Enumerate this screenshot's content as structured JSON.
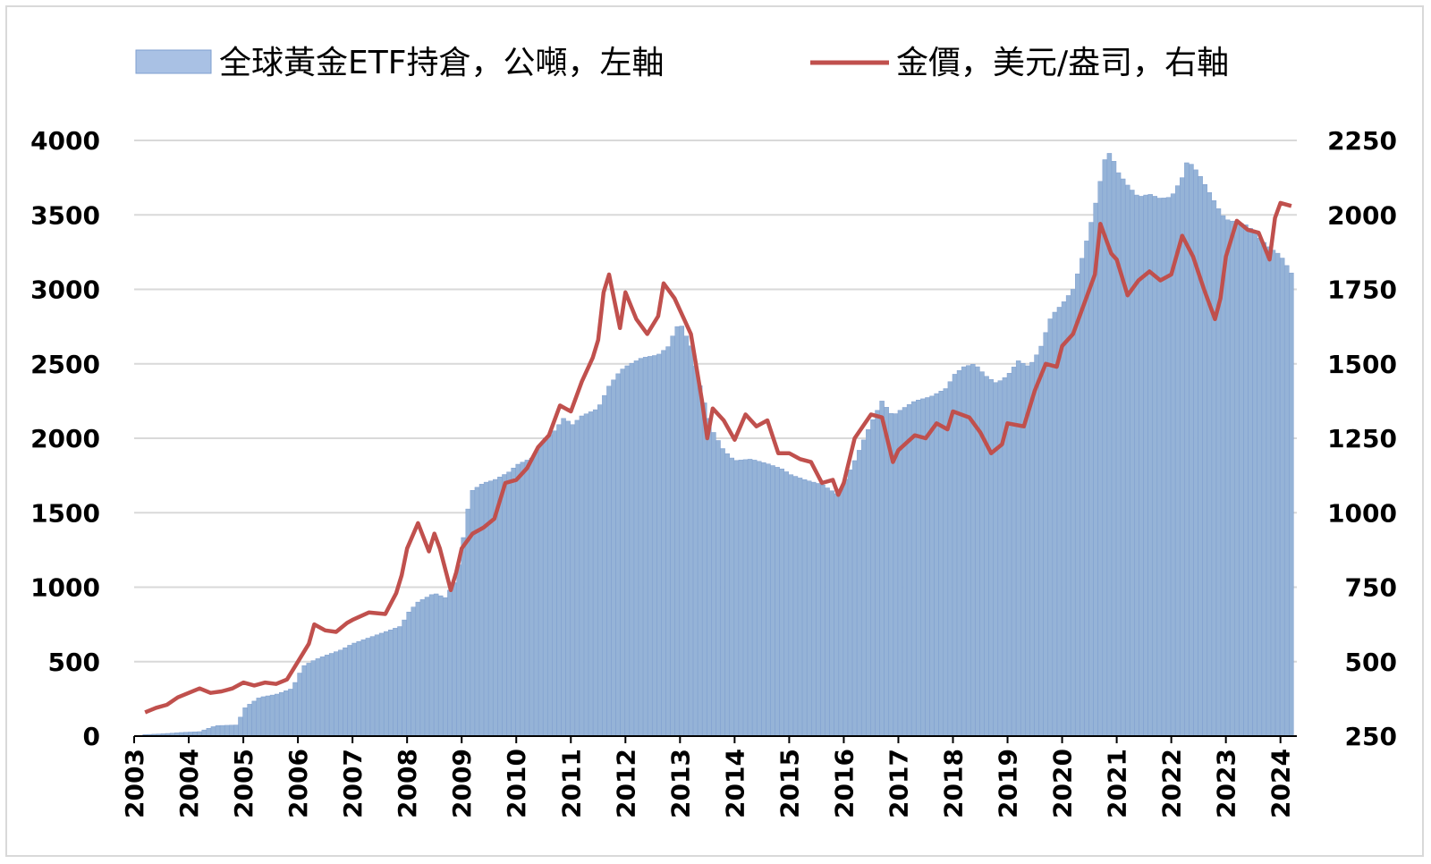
{
  "chart_data": {
    "type": "bar+line",
    "legend": {
      "bars_label": "全球黃金ETF持倉，公噸，左軸",
      "line_label": "金價，美元/盎司，右軸"
    },
    "colors": {
      "bars": "#95b3d7",
      "bars_edge": "#7f9fcf",
      "line": "#c0504d",
      "grid": "#d9d9d9"
    },
    "left_axis": {
      "min": 0,
      "max": 4000,
      "ticks": [
        0,
        500,
        1000,
        1500,
        2000,
        2500,
        3000,
        3500,
        4000
      ]
    },
    "right_axis": {
      "min": 250,
      "max": 2250,
      "ticks": [
        250,
        500,
        750,
        1000,
        1250,
        1500,
        1750,
        2000,
        2250
      ]
    },
    "x_axis": {
      "min": 2003.0,
      "max": 2024.3,
      "ticks": [
        "2003",
        "2004",
        "2005",
        "2006",
        "2007",
        "2008",
        "2009",
        "2010",
        "2011",
        "2012",
        "2013",
        "2014",
        "2015",
        "2016",
        "2017",
        "2018",
        "2019",
        "2020",
        "2021",
        "2022",
        "2023",
        "2024"
      ]
    },
    "etf_holdings_tonnes": [
      [
        2003.2,
        10
      ],
      [
        2003.5,
        15
      ],
      [
        2003.9,
        25
      ],
      [
        2004.2,
        30
      ],
      [
        2004.5,
        70
      ],
      [
        2004.9,
        75
      ],
      [
        2005.0,
        180
      ],
      [
        2005.1,
        210
      ],
      [
        2005.3,
        260
      ],
      [
        2005.6,
        280
      ],
      [
        2005.9,
        320
      ],
      [
        2006.0,
        400
      ],
      [
        2006.1,
        470
      ],
      [
        2006.3,
        510
      ],
      [
        2006.5,
        540
      ],
      [
        2006.8,
        580
      ],
      [
        2007.0,
        620
      ],
      [
        2007.3,
        660
      ],
      [
        2007.6,
        700
      ],
      [
        2007.9,
        740
      ],
      [
        2008.0,
        820
      ],
      [
        2008.2,
        900
      ],
      [
        2008.5,
        960
      ],
      [
        2008.7,
        930
      ],
      [
        2008.9,
        1050
      ],
      [
        2009.0,
        1250
      ],
      [
        2009.1,
        1500
      ],
      [
        2009.2,
        1650
      ],
      [
        2009.4,
        1700
      ],
      [
        2009.6,
        1720
      ],
      [
        2009.9,
        1780
      ],
      [
        2010.0,
        1820
      ],
      [
        2010.3,
        1870
      ],
      [
        2010.5,
        1990
      ],
      [
        2010.7,
        2050
      ],
      [
        2010.9,
        2150
      ],
      [
        2011.0,
        2080
      ],
      [
        2011.2,
        2150
      ],
      [
        2011.5,
        2200
      ],
      [
        2011.7,
        2350
      ],
      [
        2011.9,
        2450
      ],
      [
        2012.0,
        2480
      ],
      [
        2012.3,
        2540
      ],
      [
        2012.6,
        2560
      ],
      [
        2012.8,
        2620
      ],
      [
        2012.9,
        2720
      ],
      [
        2013.0,
        2780
      ],
      [
        2013.2,
        2620
      ],
      [
        2013.4,
        2300
      ],
      [
        2013.6,
        2050
      ],
      [
        2013.8,
        1920
      ],
      [
        2014.0,
        1850
      ],
      [
        2014.3,
        1860
      ],
      [
        2014.6,
        1830
      ],
      [
        2014.9,
        1790
      ],
      [
        2015.0,
        1760
      ],
      [
        2015.3,
        1720
      ],
      [
        2015.6,
        1690
      ],
      [
        2015.9,
        1620
      ],
      [
        2016.0,
        1700
      ],
      [
        2016.2,
        1850
      ],
      [
        2016.5,
        2100
      ],
      [
        2016.7,
        2250
      ],
      [
        2016.9,
        2150
      ],
      [
        2017.0,
        2180
      ],
      [
        2017.3,
        2250
      ],
      [
        2017.6,
        2280
      ],
      [
        2017.9,
        2340
      ],
      [
        2018.0,
        2420
      ],
      [
        2018.2,
        2480
      ],
      [
        2018.4,
        2500
      ],
      [
        2018.6,
        2420
      ],
      [
        2018.8,
        2370
      ],
      [
        2019.0,
        2420
      ],
      [
        2019.2,
        2520
      ],
      [
        2019.4,
        2480
      ],
      [
        2019.6,
        2600
      ],
      [
        2019.8,
        2820
      ],
      [
        2020.0,
        2900
      ],
      [
        2020.2,
        3000
      ],
      [
        2020.4,
        3250
      ],
      [
        2020.6,
        3550
      ],
      [
        2020.8,
        3900
      ],
      [
        2020.9,
        3920
      ],
      [
        2021.0,
        3800
      ],
      [
        2021.2,
        3700
      ],
      [
        2021.4,
        3620
      ],
      [
        2021.6,
        3640
      ],
      [
        2021.8,
        3610
      ],
      [
        2022.0,
        3620
      ],
      [
        2022.2,
        3750
      ],
      [
        2022.3,
        3870
      ],
      [
        2022.5,
        3780
      ],
      [
        2022.7,
        3650
      ],
      [
        2022.9,
        3520
      ],
      [
        2023.0,
        3470
      ],
      [
        2023.2,
        3450
      ],
      [
        2023.4,
        3430
      ],
      [
        2023.6,
        3350
      ],
      [
        2023.8,
        3280
      ],
      [
        2024.0,
        3230
      ],
      [
        2024.2,
        3110
      ]
    ],
    "gold_price_usd": [
      [
        2003.2,
        330
      ],
      [
        2003.4,
        345
      ],
      [
        2003.6,
        355
      ],
      [
        2003.8,
        380
      ],
      [
        2004.0,
        395
      ],
      [
        2004.2,
        410
      ],
      [
        2004.4,
        395
      ],
      [
        2004.6,
        400
      ],
      [
        2004.8,
        410
      ],
      [
        2005.0,
        430
      ],
      [
        2005.2,
        420
      ],
      [
        2005.4,
        430
      ],
      [
        2005.6,
        425
      ],
      [
        2005.8,
        440
      ],
      [
        2006.0,
        500
      ],
      [
        2006.2,
        560
      ],
      [
        2006.3,
        625
      ],
      [
        2006.5,
        605
      ],
      [
        2006.7,
        600
      ],
      [
        2006.9,
        630
      ],
      [
        2007.0,
        640
      ],
      [
        2007.3,
        665
      ],
      [
        2007.6,
        660
      ],
      [
        2007.8,
        730
      ],
      [
        2007.9,
        790
      ],
      [
        2008.0,
        880
      ],
      [
        2008.2,
        965
      ],
      [
        2008.4,
        870
      ],
      [
        2008.5,
        930
      ],
      [
        2008.6,
        880
      ],
      [
        2008.8,
        740
      ],
      [
        2008.9,
        800
      ],
      [
        2009.0,
        880
      ],
      [
        2009.2,
        930
      ],
      [
        2009.4,
        950
      ],
      [
        2009.6,
        980
      ],
      [
        2009.8,
        1100
      ],
      [
        2010.0,
        1110
      ],
      [
        2010.2,
        1150
      ],
      [
        2010.4,
        1220
      ],
      [
        2010.6,
        1260
      ],
      [
        2010.8,
        1360
      ],
      [
        2011.0,
        1340
      ],
      [
        2011.2,
        1440
      ],
      [
        2011.4,
        1520
      ],
      [
        2011.5,
        1580
      ],
      [
        2011.6,
        1740
      ],
      [
        2011.7,
        1800
      ],
      [
        2011.9,
        1620
      ],
      [
        2012.0,
        1740
      ],
      [
        2012.2,
        1650
      ],
      [
        2012.4,
        1600
      ],
      [
        2012.6,
        1660
      ],
      [
        2012.7,
        1770
      ],
      [
        2012.9,
        1720
      ],
      [
        2013.0,
        1680
      ],
      [
        2013.2,
        1600
      ],
      [
        2013.4,
        1380
      ],
      [
        2013.5,
        1250
      ],
      [
        2013.6,
        1350
      ],
      [
        2013.8,
        1310
      ],
      [
        2014.0,
        1245
      ],
      [
        2014.2,
        1330
      ],
      [
        2014.4,
        1290
      ],
      [
        2014.6,
        1310
      ],
      [
        2014.8,
        1200
      ],
      [
        2015.0,
        1200
      ],
      [
        2015.2,
        1180
      ],
      [
        2015.4,
        1170
      ],
      [
        2015.6,
        1100
      ],
      [
        2015.8,
        1110
      ],
      [
        2015.9,
        1060
      ],
      [
        2016.0,
        1100
      ],
      [
        2016.2,
        1250
      ],
      [
        2016.5,
        1330
      ],
      [
        2016.7,
        1320
      ],
      [
        2016.9,
        1170
      ],
      [
        2017.0,
        1210
      ],
      [
        2017.3,
        1260
      ],
      [
        2017.5,
        1250
      ],
      [
        2017.7,
        1300
      ],
      [
        2017.9,
        1280
      ],
      [
        2018.0,
        1340
      ],
      [
        2018.3,
        1320
      ],
      [
        2018.5,
        1270
      ],
      [
        2018.7,
        1200
      ],
      [
        2018.9,
        1230
      ],
      [
        2019.0,
        1300
      ],
      [
        2019.3,
        1290
      ],
      [
        2019.5,
        1410
      ],
      [
        2019.7,
        1500
      ],
      [
        2019.9,
        1490
      ],
      [
        2020.0,
        1560
      ],
      [
        2020.2,
        1600
      ],
      [
        2020.4,
        1700
      ],
      [
        2020.6,
        1800
      ],
      [
        2020.7,
        1970
      ],
      [
        2020.9,
        1870
      ],
      [
        2021.0,
        1850
      ],
      [
        2021.2,
        1730
      ],
      [
        2021.4,
        1780
      ],
      [
        2021.6,
        1810
      ],
      [
        2021.8,
        1780
      ],
      [
        2022.0,
        1800
      ],
      [
        2022.2,
        1930
      ],
      [
        2022.4,
        1860
      ],
      [
        2022.6,
        1750
      ],
      [
        2022.8,
        1650
      ],
      [
        2022.9,
        1720
      ],
      [
        2023.0,
        1860
      ],
      [
        2023.2,
        1980
      ],
      [
        2023.4,
        1950
      ],
      [
        2023.6,
        1940
      ],
      [
        2023.8,
        1850
      ],
      [
        2023.9,
        1990
      ],
      [
        2024.0,
        2040
      ],
      [
        2024.2,
        2030
      ]
    ]
  }
}
